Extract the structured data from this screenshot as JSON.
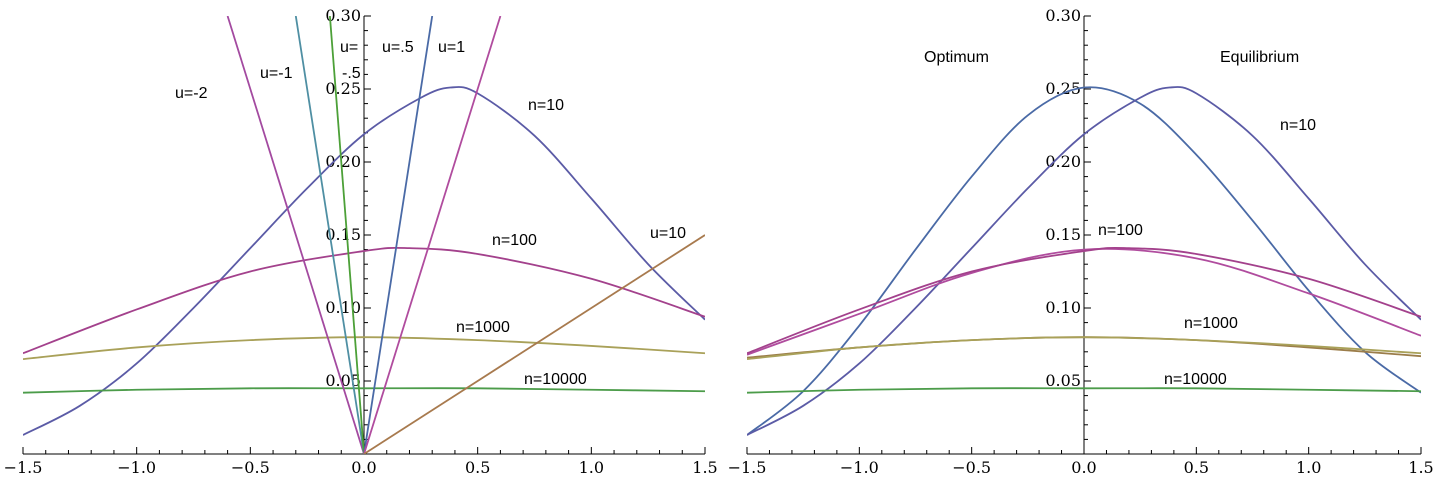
{
  "colors": {
    "n10": "#5b5ba6",
    "n100": "#a3418c",
    "n1000": "#a9a159",
    "n1000b": "#9b7d4a",
    "n10000": "#4c9c4a",
    "u_neg2": "#a34aa0",
    "u_neg1": "#4f8fa3",
    "u_neg05": "#4ca038",
    "u_05": "#4a6aa6",
    "u_1": "#b04c9e",
    "u_10": "#a87a4e"
  },
  "chart_data": [
    {
      "type": "line",
      "xlim": [
        -1.5,
        1.5
      ],
      "ylim": [
        0.0,
        0.3
      ],
      "x_ticks": [
        "-1.5",
        "-1.0",
        "-0.5",
        "0.0",
        "0.5",
        "1.0",
        "1.5"
      ],
      "y_ticks": [
        "0.05",
        "0.10",
        "0.15",
        "0.20",
        "0.25",
        "0.30"
      ],
      "series": [
        {
          "name": "n=10",
          "x": [
            -1.5,
            -1.25,
            -1.0,
            -0.75,
            -0.5,
            -0.25,
            0.0,
            0.25,
            0.38,
            0.5,
            0.75,
            1.0,
            1.25,
            1.5
          ],
          "y": [
            0.013,
            0.033,
            0.062,
            0.1,
            0.141,
            0.182,
            0.219,
            0.244,
            0.251,
            0.247,
            0.218,
            0.175,
            0.13,
            0.092
          ]
        },
        {
          "name": "n=100",
          "x": [
            -1.5,
            -1.0,
            -0.5,
            0.0,
            0.2,
            0.5,
            1.0,
            1.5
          ],
          "y": [
            0.069,
            0.099,
            0.125,
            0.139,
            0.141,
            0.137,
            0.12,
            0.094
          ]
        },
        {
          "name": "n=1000",
          "x": [
            -1.5,
            -1.0,
            -0.5,
            0.0,
            0.5,
            1.0,
            1.5
          ],
          "y": [
            0.065,
            0.073,
            0.078,
            0.08,
            0.078,
            0.074,
            0.069
          ]
        },
        {
          "name": "n=10000",
          "x": [
            -1.5,
            -1.0,
            -0.5,
            0.0,
            0.5,
            1.0,
            1.5
          ],
          "y": [
            0.042,
            0.044,
            0.045,
            0.045,
            0.045,
            0.044,
            0.043
          ]
        },
        {
          "name": "u=-2",
          "x": [
            0.0,
            -0.6
          ],
          "y": [
            0.0,
            0.3
          ]
        },
        {
          "name": "u=-1",
          "x": [
            0.0,
            -0.3
          ],
          "y": [
            0.0,
            0.3
          ]
        },
        {
          "name": "u=-.5",
          "x": [
            0.0,
            -0.15
          ],
          "y": [
            0.0,
            0.3
          ]
        },
        {
          "name": "u=.5",
          "x": [
            0.0,
            0.3
          ],
          "y": [
            0.0,
            0.3
          ]
        },
        {
          "name": "u=1",
          "x": [
            0.0,
            0.6
          ],
          "y": [
            0.0,
            0.3
          ]
        },
        {
          "name": "u=10",
          "x": [
            0.0,
            1.5
          ],
          "y": [
            0.0,
            0.15
          ]
        }
      ],
      "annotations": [
        "u=-2",
        "u=-1",
        "u=",
        "-.5",
        "u=.5",
        "u=1",
        "n=10",
        "n=100",
        "u=10",
        "n=1000",
        "n=10000"
      ]
    },
    {
      "type": "line",
      "xlim": [
        -1.5,
        1.5
      ],
      "ylim": [
        0.0,
        0.3
      ],
      "x_ticks": [
        "-1.5",
        "-1.0",
        "-0.5",
        "0.0",
        "0.5",
        "1.0",
        "1.5"
      ],
      "y_ticks": [
        "0.05",
        "0.10",
        "0.15",
        "0.20",
        "0.25",
        "0.30"
      ],
      "series": [
        {
          "name": "Optimum n=10",
          "x": [
            -1.5,
            -1.25,
            -1.0,
            -0.75,
            -0.5,
            -0.25,
            0.0,
            0.25,
            0.5,
            0.75,
            1.0,
            1.25,
            1.5
          ],
          "y": [
            0.013,
            0.043,
            0.088,
            0.14,
            0.19,
            0.232,
            0.251,
            0.24,
            0.205,
            0.16,
            0.112,
            0.07,
            0.042
          ]
        },
        {
          "name": "Equilibrium n=10",
          "x": [
            -1.5,
            -1.25,
            -1.0,
            -0.75,
            -0.5,
            -0.25,
            0.0,
            0.25,
            0.38,
            0.5,
            0.75,
            1.0,
            1.25,
            1.5
          ],
          "y": [
            0.013,
            0.033,
            0.062,
            0.1,
            0.141,
            0.182,
            0.219,
            0.244,
            0.251,
            0.247,
            0.218,
            0.175,
            0.13,
            0.092
          ]
        },
        {
          "name": "Optimum n=100",
          "x": [
            -1.5,
            -1.0,
            -0.5,
            0.0,
            0.5,
            1.0,
            1.5
          ],
          "y": [
            0.068,
            0.096,
            0.124,
            0.14,
            0.134,
            0.11,
            0.081
          ]
        },
        {
          "name": "Equilibrium n=100",
          "x": [
            -1.5,
            -1.0,
            -0.5,
            0.0,
            0.2,
            0.5,
            1.0,
            1.5
          ],
          "y": [
            0.069,
            0.099,
            0.125,
            0.139,
            0.141,
            0.137,
            0.12,
            0.094
          ]
        },
        {
          "name": "Optimum n=1000",
          "x": [
            -1.5,
            -1.0,
            -0.5,
            0.0,
            0.5,
            1.0,
            1.5
          ],
          "y": [
            0.066,
            0.073,
            0.078,
            0.08,
            0.078,
            0.073,
            0.067
          ]
        },
        {
          "name": "Equilibrium n=1000",
          "x": [
            -1.5,
            -1.0,
            -0.5,
            0.0,
            0.5,
            1.0,
            1.5
          ],
          "y": [
            0.065,
            0.073,
            0.078,
            0.08,
            0.078,
            0.074,
            0.069
          ]
        },
        {
          "name": "n=10000",
          "x": [
            -1.5,
            -1.0,
            -0.5,
            0.0,
            0.5,
            1.0,
            1.5
          ],
          "y": [
            0.042,
            0.044,
            0.045,
            0.045,
            0.045,
            0.044,
            0.043
          ]
        }
      ],
      "annotations": [
        "Optimum",
        "Equilibrium",
        "n=10",
        "n=100",
        "n=1000",
        "n=10000"
      ]
    }
  ]
}
